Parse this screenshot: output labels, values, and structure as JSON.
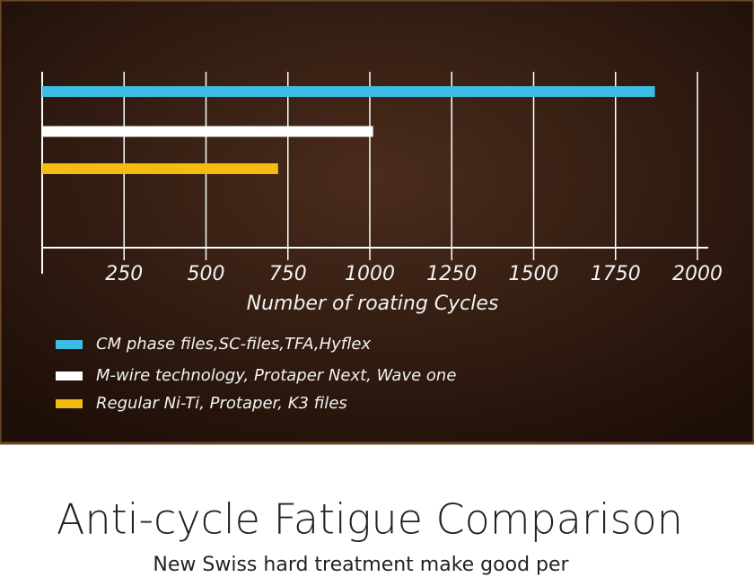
{
  "chart_data": {
    "type": "bar",
    "orientation": "horizontal",
    "title": "Anti-cycle Fatigue Comparison",
    "subtitle": "New Swiss hard treatment make good per",
    "x_label": "Number of roating Cycles",
    "categories": [
      null
    ],
    "series": [
      {
        "name": "CM phase files,SC-files,TFA,Hyflex",
        "color": "#3dbde6",
        "values": [
          1870
        ]
      },
      {
        "name": "M-wire technology, Protaper Next, Wave one",
        "color": "#ffffff",
        "values": [
          1010
        ]
      },
      {
        "name": "Regular Ni-Ti, Protaper, K3 files",
        "color": "#f5bb12",
        "values": [
          720
        ]
      }
    ],
    "xlim": [
      0,
      2000
    ],
    "xticks": [
      250,
      500,
      750,
      1000,
      1250,
      1500,
      1750,
      2000
    ],
    "grid": true
  }
}
